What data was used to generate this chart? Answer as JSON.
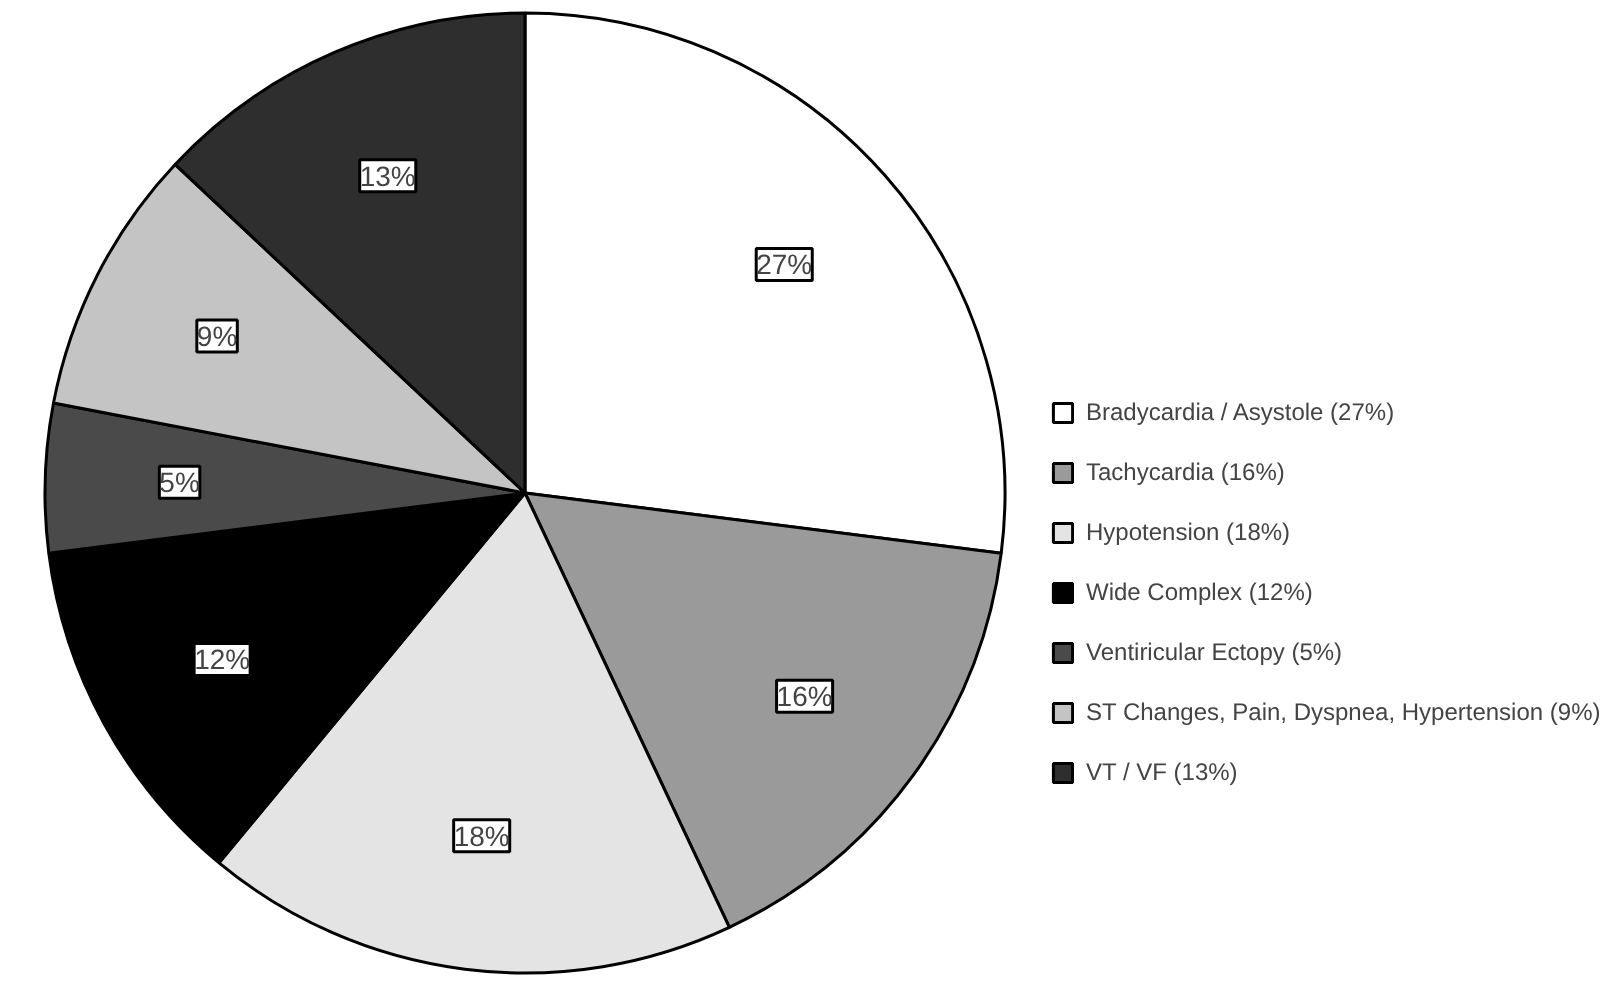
{
  "chart_data": {
    "type": "pie",
    "categories": [
      "Bradycardia / Asystole (27%)",
      "Tachycardia (16%)",
      "Hypotension (18%)",
      "Wide Complex (12%)",
      "Ventiricular Ectopy (5%)",
      "ST Changes, Pain, Dyspnea, Hypertension (9%)",
      "VT / VF (13%)"
    ],
    "values": [
      27,
      16,
      18,
      12,
      5,
      9,
      13
    ],
    "value_labels": [
      "27%",
      "16%",
      "18%",
      "12%",
      "5%",
      "9%",
      "13%"
    ],
    "colors": [
      "#ffffff",
      "#9a9a9a",
      "#e4e4e4",
      "#000000",
      "#4a4a4a",
      "#c4c4c4",
      "#2e2e2e"
    ],
    "legend": "right"
  }
}
